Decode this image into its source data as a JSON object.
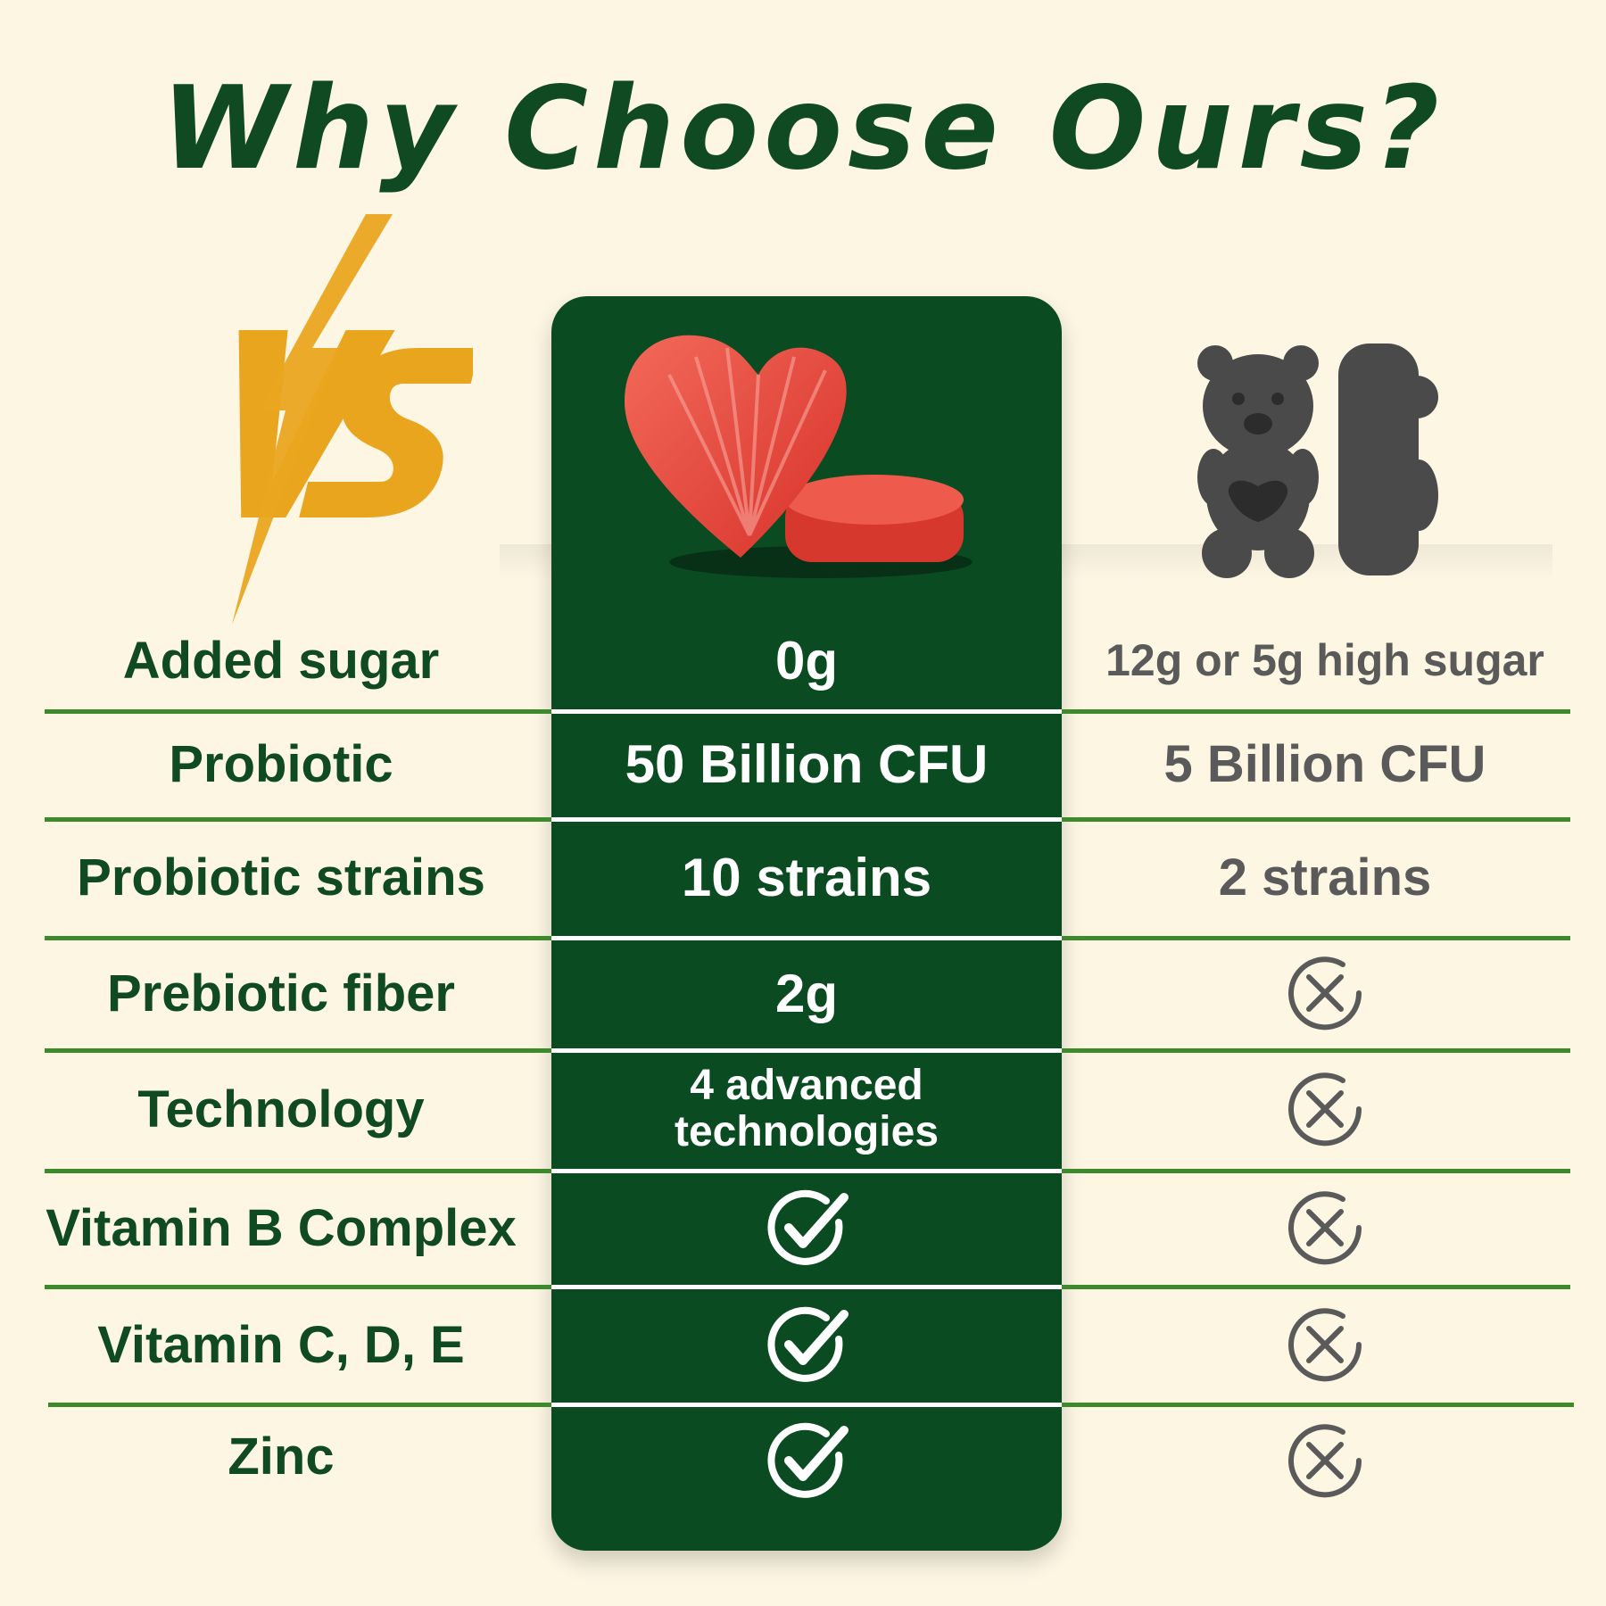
{
  "title": "Why Choose Ours?",
  "vs_logo": {
    "text": "VS",
    "color": "#eaa51f"
  },
  "colors": {
    "brand_green": "#0b4b22",
    "title_green": "#0f4a22",
    "divider_green": "#3d8a2c",
    "competitor_gray": "#5a5a5a",
    "background": "#fdf6e3"
  },
  "products": {
    "ours_image": "heart-gummy-image",
    "theirs_image": "bear-gummy-image"
  },
  "rows": [
    {
      "label": "Added sugar",
      "ours": "0g",
      "theirs": "12g or 5g high sugar"
    },
    {
      "label": "Probiotic",
      "ours": "50 Billion CFU",
      "theirs": "5 Billion CFU"
    },
    {
      "label": "Probiotic strains",
      "ours": "10 strains",
      "theirs": "2 strains"
    },
    {
      "label": "Prebiotic fiber",
      "ours": "2g",
      "theirs_icon": "x-circle-icon"
    },
    {
      "label": "Technology",
      "ours_line1": "4 advanced",
      "ours_line2": "technologies",
      "theirs_icon": "x-circle-icon"
    },
    {
      "label": "Vitamin B Complex",
      "ours_icon": "check-circle-icon",
      "theirs_icon": "x-circle-icon"
    },
    {
      "label": "Vitamin C, D, E",
      "ours_icon": "check-circle-icon",
      "theirs_icon": "x-circle-icon"
    },
    {
      "label": "Zinc",
      "ours_icon": "check-circle-icon",
      "theirs_icon": "x-circle-icon"
    }
  ]
}
